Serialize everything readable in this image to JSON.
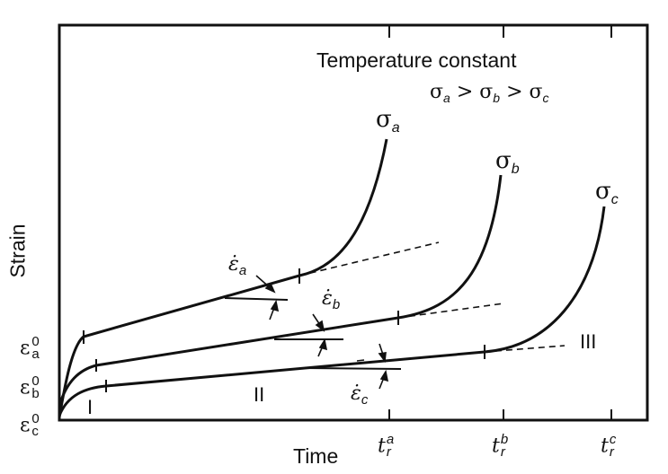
{
  "header": {
    "condition": "Temperature constant",
    "order": {
      "s1": "σ",
      "a": "a",
      "gt1": " > ",
      "s2": "σ",
      "b": "b",
      "gt2": " > ",
      "s3": "σ",
      "c": "c"
    }
  },
  "axes": {
    "x_label": "Time",
    "y_label": "Strain"
  },
  "curves": [
    {
      "sym": "σ",
      "sub": "a"
    },
    {
      "sym": "σ",
      "sub": "b"
    },
    {
      "sym": "σ",
      "sub": "c"
    }
  ],
  "initial_strains": [
    {
      "sym": "ε",
      "sub": "a",
      "sup": "0"
    },
    {
      "sym": "ε",
      "sub": "b",
      "sup": "0"
    },
    {
      "sym": "ε",
      "sub": "c",
      "sup": "0"
    }
  ],
  "rates": [
    {
      "sym": "ε̇",
      "sub": "a"
    },
    {
      "sym": "ε̇",
      "sub": "b"
    },
    {
      "sym": "ε̇",
      "sub": "c"
    }
  ],
  "rupture_times": [
    {
      "sym": "t",
      "sub": "r",
      "sup": "a"
    },
    {
      "sym": "t",
      "sub": "r",
      "sup": "b"
    },
    {
      "sym": "t",
      "sub": "r",
      "sup": "c"
    }
  ],
  "stages": [
    "I",
    "II",
    "III"
  ]
}
